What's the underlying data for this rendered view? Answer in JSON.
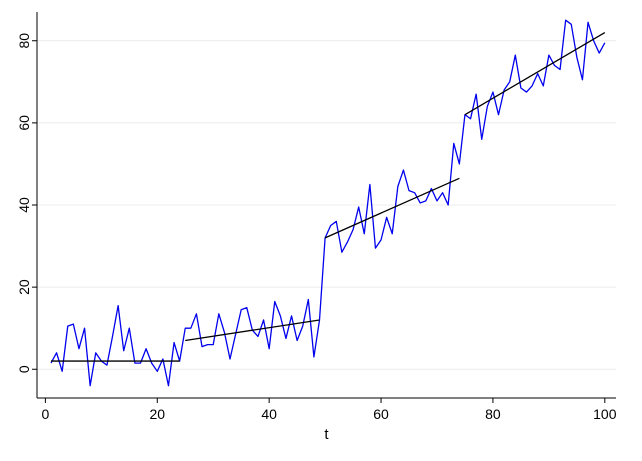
{
  "chart_data": {
    "type": "line",
    "xlabel": "t",
    "ylabel": "",
    "xlim": [
      -1.5,
      102
    ],
    "ylim": [
      -7,
      87
    ],
    "x_ticks": [
      0,
      20,
      40,
      60,
      80,
      100
    ],
    "y_ticks": [
      0,
      20,
      40,
      60,
      80
    ],
    "grid": "horizontal",
    "colors": {
      "series": "#0000ee",
      "fit": "#000000",
      "grid": "#ececec"
    },
    "series": [
      {
        "type": "line",
        "x": [
          1,
          2,
          3,
          4,
          5,
          6,
          7,
          8,
          9,
          10,
          11,
          12,
          13,
          14,
          15,
          16,
          17,
          18,
          19,
          20,
          21,
          22,
          23,
          24,
          25,
          26,
          27,
          28,
          29,
          30,
          31,
          32,
          33,
          34,
          35,
          36,
          37,
          38,
          39,
          40,
          41,
          42,
          43,
          44,
          45,
          46,
          47,
          48,
          49,
          50,
          51,
          52,
          53,
          54,
          55,
          56,
          57,
          58,
          59,
          60,
          61,
          62,
          63,
          64,
          65,
          66,
          67,
          68,
          69,
          70,
          71,
          72,
          73,
          74,
          75,
          76,
          77,
          78,
          79,
          80,
          81,
          82,
          83,
          84,
          85,
          86,
          87,
          88,
          89,
          90,
          91,
          92,
          93,
          94,
          95,
          96,
          97,
          98,
          99,
          100
        ],
        "y": [
          1.5,
          4,
          -0.5,
          10.5,
          11,
          5,
          10,
          -4,
          4,
          2,
          1,
          8,
          15.5,
          4.5,
          10,
          1.5,
          1.5,
          5,
          1.5,
          -0.5,
          2.5,
          -4,
          6.5,
          2,
          10,
          10,
          13.5,
          5.5,
          6,
          6,
          13.5,
          9,
          2.5,
          8.5,
          14.5,
          15,
          9.5,
          8,
          12,
          5,
          16.5,
          13,
          7.5,
          13,
          7,
          10.5,
          17,
          3,
          12,
          32,
          35,
          36,
          28.5,
          31,
          34,
          39.5,
          33,
          45,
          29.5,
          31.5,
          37,
          33,
          44.5,
          48.5,
          43.5,
          43,
          40.5,
          41,
          44,
          41,
          43,
          40,
          55,
          50,
          62,
          61,
          67,
          56,
          64,
          67.5,
          62,
          68,
          70,
          76.5,
          68.5,
          67.5,
          69,
          72,
          69,
          76.5,
          74,
          73,
          85,
          84,
          76,
          70.5,
          84.5,
          80,
          77,
          79.5
        ]
      }
    ],
    "fit_segments": [
      {
        "x": [
          1,
          24
        ],
        "y": [
          2,
          2
        ]
      },
      {
        "x": [
          25,
          49
        ],
        "y": [
          7,
          12
        ]
      },
      {
        "x": [
          50,
          74
        ],
        "y": [
          32,
          46.5
        ]
      },
      {
        "x": [
          75,
          100
        ],
        "y": [
          62,
          82
        ]
      }
    ]
  }
}
